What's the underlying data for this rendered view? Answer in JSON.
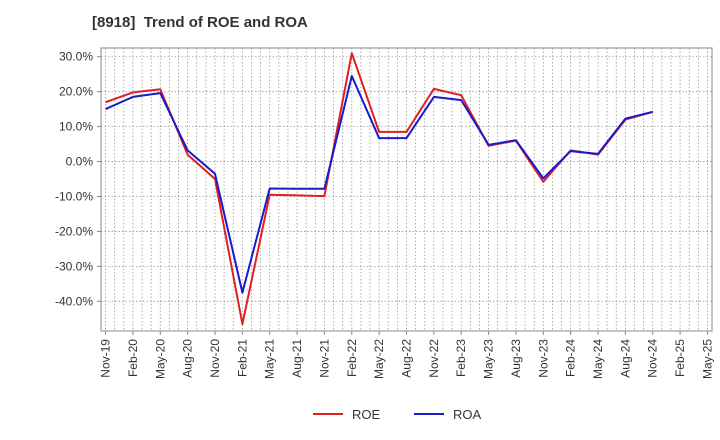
{
  "chart_data": {
    "type": "line",
    "title": "[8918]  Trend of ROE and ROA",
    "xlabel": "",
    "ylabel": "",
    "categories": [
      "Nov-19",
      "Feb-20",
      "May-20",
      "Aug-20",
      "Nov-20",
      "Feb-21",
      "May-21",
      "Aug-21",
      "Nov-21",
      "Feb-22",
      "May-22",
      "Aug-22",
      "Nov-22",
      "Feb-23",
      "May-23",
      "Aug-23",
      "Nov-23",
      "Feb-24",
      "May-24",
      "Aug-24",
      "Nov-24",
      "Feb-25",
      "May-25"
    ],
    "ylim": [
      -48.5,
      32.5
    ],
    "yticks": [
      30,
      20,
      10,
      0,
      -10,
      -20,
      -30,
      -40
    ],
    "ytick_labels": [
      "30.0%",
      "20.0%",
      "10.0%",
      "0.0%",
      "-10.0%",
      "-20.0%",
      "-30.0%",
      "-40.0%"
    ],
    "grid": true,
    "legend_position": "bottom",
    "series": [
      {
        "name": "ROE",
        "color": "#e02020",
        "values": [
          17.0,
          19.8,
          20.7,
          2.0,
          -5.0,
          -46.5,
          -9.5,
          -9.7,
          -9.9,
          31.0,
          8.5,
          8.5,
          20.8,
          19.0,
          4.5,
          6.0,
          -5.8,
          3.2,
          2.0,
          12.0,
          14.2,
          null,
          null
        ]
      },
      {
        "name": "ROA",
        "color": "#1a1acc",
        "values": [
          15.0,
          18.5,
          19.6,
          3.2,
          -3.5,
          -37.5,
          -7.7,
          -7.8,
          -7.8,
          24.5,
          6.7,
          6.7,
          18.5,
          17.6,
          4.8,
          6.1,
          -4.8,
          3.0,
          2.2,
          12.3,
          14.2,
          null,
          null
        ]
      }
    ]
  }
}
